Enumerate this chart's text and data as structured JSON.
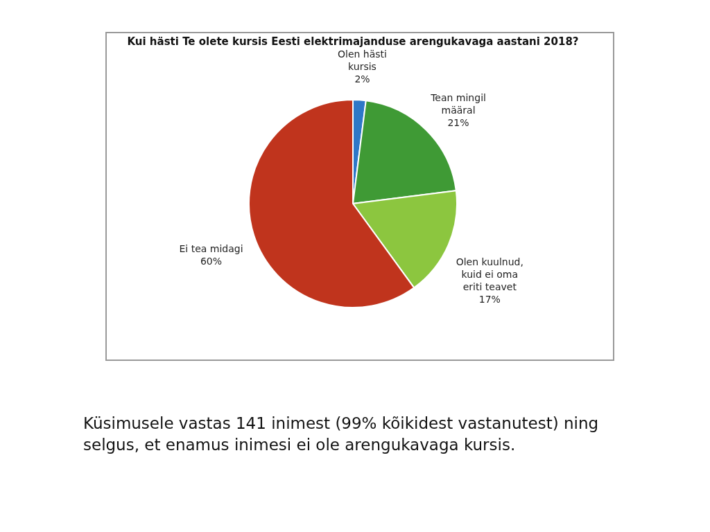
{
  "chart_data": {
    "type": "pie",
    "title": "Kui hästi Te olete kursis Eesti elektrimajanduse arengukavaga aastani 2018?",
    "categories": [
      "Olen hästi kursis",
      "Tean mingil määral",
      "Olen kuulnud, kuid ei oma eriti teavet",
      "Ei tea midagi"
    ],
    "values": [
      2,
      21,
      17,
      60
    ],
    "value_labels": [
      "2%",
      "21%",
      "17%",
      "60%"
    ],
    "colors": [
      "#2e78c8",
      "#3f9a35",
      "#8cc63f",
      "#c0341d"
    ],
    "annotations": [
      "Küsimusele vastas 141 inimest (99% kõikidest vastanutest) ning selgus, et enamus inimesi ei ole arengukavaga kursis."
    ]
  }
}
